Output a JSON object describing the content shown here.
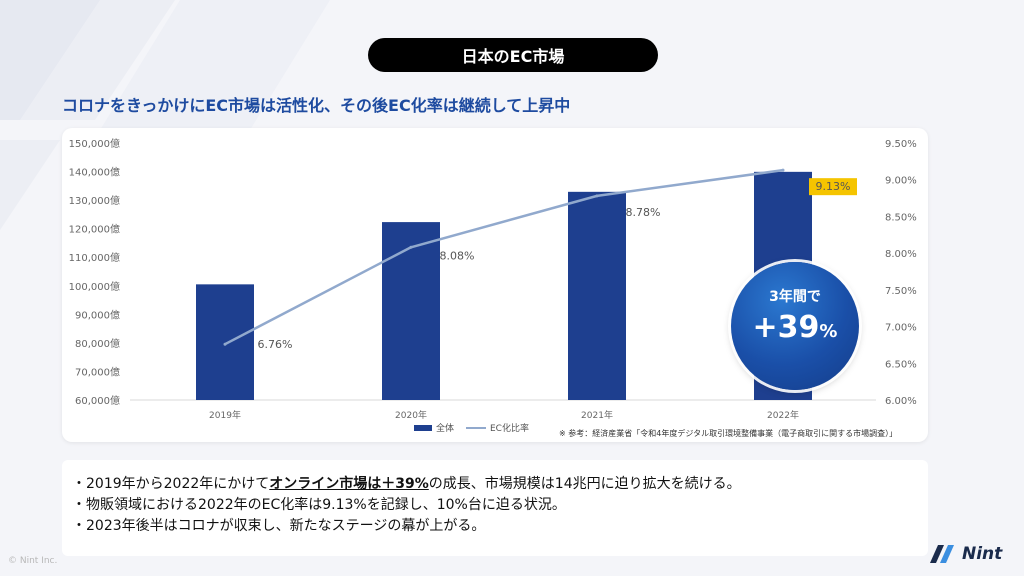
{
  "slide": {
    "title": "日本のEC市場",
    "headline": "コロナをきっかけにEC市場は活性化、その後EC化率は継続して上昇中",
    "copyright": "© Nint Inc.",
    "logo_text": "Nint"
  },
  "chart_data": {
    "type": "bar",
    "categories": [
      "2019年",
      "2020年",
      "2021年",
      "2022年"
    ],
    "series": [
      {
        "name": "全体",
        "kind": "bar",
        "axis": "left",
        "values": [
          100500,
          122300,
          132900,
          139900
        ],
        "color": "#1e3f8f"
      },
      {
        "name": "EC化比率",
        "kind": "line",
        "axis": "right",
        "values": [
          6.76,
          8.08,
          8.78,
          9.13
        ],
        "color": "#91a9cd"
      }
    ],
    "data_labels": [
      "6.76%",
      "8.08%",
      "8.78%",
      "9.13%"
    ],
    "highlight_label_color": "#f5c400",
    "left_axis": {
      "ylim": [
        60000,
        150000
      ],
      "ticks": [
        "60,000億",
        "70,000億",
        "80,000億",
        "90,000億",
        "100,000億",
        "110,000億",
        "120,000億",
        "130,000億",
        "140,000億",
        "150,000億"
      ]
    },
    "right_axis": {
      "ylim": [
        6.0,
        9.5
      ],
      "ticks": [
        "6.00%",
        "6.50%",
        "7.00%",
        "7.50%",
        "8.00%",
        "8.50%",
        "9.00%",
        "9.50%"
      ]
    },
    "legend_position": "bottom",
    "grid": false,
    "note": "※ 参考：経済産業省「令和4年度デジタル取引環境整備事業（電子商取引に関する市場調査）」"
  },
  "badge": {
    "top": "3年間で",
    "main": "+39",
    "unit": "%"
  },
  "bullets": [
    {
      "pre": "・2019年から2022年にかけて",
      "em": "オンライン市場は＋39%",
      "post": "の成長、市場規模は14兆円に迫り拡大を続ける。"
    },
    {
      "pre": "・物販領域における2022年のEC化率は9.13%を記録し、10%台に迫る状況。",
      "em": "",
      "post": ""
    },
    {
      "pre": "・2023年後半はコロナが収束し、新たなステージの幕が上がる。",
      "em": "",
      "post": ""
    }
  ]
}
